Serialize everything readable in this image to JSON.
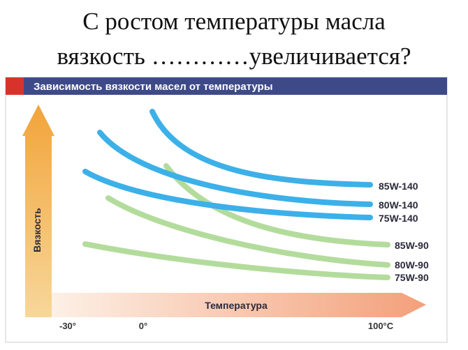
{
  "slide": {
    "title_line1": "С ростом температуры масла",
    "title_line2": "вязкость …………увеличивается?"
  },
  "chart": {
    "header": "Зависимость вязкости масел от температуры",
    "y_axis_label": "Вязкость",
    "x_axis_label": "Температура",
    "x_ticks": [
      "-30°",
      "0°",
      "100°C"
    ],
    "curve_labels": [
      "85W-140",
      "80W-140",
      "75W-140",
      "85W-90",
      "80W-90",
      "75W-90"
    ]
  }
}
